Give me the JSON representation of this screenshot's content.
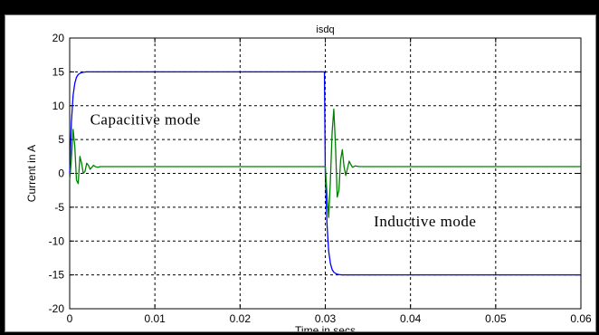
{
  "chart_data": {
    "type": "line",
    "title": "isdq",
    "xlabel": "Time in secs",
    "ylabel": "Current in A",
    "xlim": [
      0,
      0.06
    ],
    "ylim": [
      -20,
      20
    ],
    "xticks": [
      0,
      0.01,
      0.02,
      0.03,
      0.04,
      0.05,
      0.06
    ],
    "xtick_labels": [
      "0",
      "0.01",
      "0.02",
      "0.03",
      "0.04",
      "0.05",
      "0.06"
    ],
    "yticks": [
      20,
      15,
      10,
      5,
      0,
      -5,
      -10,
      -15,
      -20
    ],
    "ytick_labels": [
      "20",
      "15",
      "10",
      "5",
      "0",
      "-5",
      "-10",
      "-15",
      "-20"
    ],
    "grid": true,
    "annotations": [
      {
        "text": "Capacitive  mode",
        "x": 0.0024,
        "y": 7.2
      },
      {
        "text": "Inductive  mode",
        "x": 0.0357,
        "y": -7.8
      }
    ],
    "series": [
      {
        "color": "#0000ff",
        "x": [
          0,
          0.0002,
          0.0004,
          0.0006,
          0.0008,
          0.001,
          0.0013,
          0.0016,
          0.002,
          0.0025,
          0.003,
          0.01,
          0.02,
          0.0299,
          0.03,
          0.0302,
          0.0304,
          0.0306,
          0.0308,
          0.031,
          0.0313,
          0.0316,
          0.032,
          0.0325,
          0.033,
          0.04,
          0.05,
          0.06
        ],
        "values": [
          0,
          7.5,
          11.5,
          13.3,
          14.2,
          14.6,
          14.85,
          14.95,
          15,
          15,
          15,
          15,
          15,
          15,
          0,
          -7.5,
          -11.5,
          -13.3,
          -14.2,
          -14.6,
          -14.85,
          -14.95,
          -15,
          -15,
          -15,
          -15,
          -15,
          -15
        ]
      },
      {
        "color": "#008000",
        "x": [
          0,
          0.0002,
          0.0004,
          0.0006,
          0.0008,
          0.001,
          0.0012,
          0.0014,
          0.0016,
          0.0018,
          0.002,
          0.0022,
          0.0024,
          0.0026,
          0.0028,
          0.003,
          0.0033,
          0.0036,
          0.004,
          0.01,
          0.02,
          0.0295,
          0.03,
          0.0302,
          0.0304,
          0.0306,
          0.0308,
          0.031,
          0.0312,
          0.0314,
          0.0316,
          0.0318,
          0.032,
          0.0322,
          0.0324,
          0.0326,
          0.0328,
          0.033,
          0.0332,
          0.0335,
          0.034,
          0.04,
          0.05,
          0.06
        ],
        "values": [
          -1,
          2,
          6.5,
          4,
          -1,
          -1.5,
          2.5,
          1.5,
          0,
          0.3,
          1.5,
          1.2,
          0.6,
          0.9,
          1.2,
          1,
          0.9,
          1,
          1,
          1,
          1,
          1,
          1,
          -3,
          -6.5,
          -1,
          6,
          9.5,
          4,
          -3.5,
          -2.5,
          2,
          3.5,
          1,
          -0.3,
          0.7,
          1.8,
          1.3,
          0.9,
          1.1,
          1,
          1,
          1,
          1
        ]
      }
    ]
  }
}
